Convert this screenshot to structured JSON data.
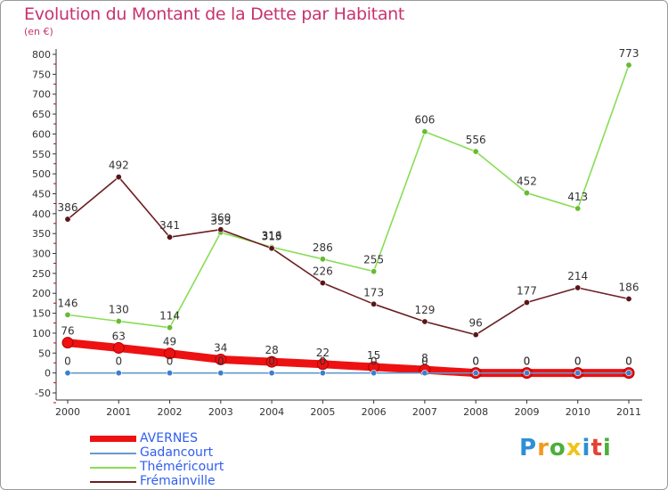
{
  "header": {
    "title": "Evolution du Montant de la Dette par Habitant",
    "subtitle": "(en €)"
  },
  "colors": {
    "title": "#c8326e",
    "axis": "#333333",
    "grid_tick": "#cc0000",
    "legend_text": "#2f5ef0"
  },
  "chart_data": {
    "type": "line",
    "x": [
      "2000",
      "2001",
      "2002",
      "2003",
      "2004",
      "2005",
      "2006",
      "2007",
      "2008",
      "2009",
      "2010",
      "2011"
    ],
    "ylim": [
      -50,
      800
    ],
    "yticks": [
      "-50",
      "0",
      "50",
      "100",
      "150",
      "200",
      "250",
      "300",
      "350",
      "400",
      "450",
      "500",
      "550",
      "600",
      "650",
      "700",
      "750",
      "800"
    ],
    "grid": false,
    "legend_position": "bottom-left",
    "series": [
      {
        "name": "AVERNES",
        "color": "#ee1111",
        "marker_color": "#ee1111",
        "values": [
          76,
          63,
          49,
          34,
          28,
          22,
          15,
          8,
          0,
          0,
          0,
          0
        ],
        "labels": [
          "76",
          "63",
          "49",
          "34",
          "28",
          "22",
          "15",
          "8",
          "0",
          "0",
          "0",
          "0"
        ],
        "style": "thick"
      },
      {
        "name": "Gadancourt",
        "color": "#6699cc",
        "marker_color": "#3a7fd0",
        "values": [
          0,
          0,
          0,
          0,
          0,
          0,
          0,
          0,
          0,
          0,
          0,
          0
        ],
        "labels": [
          "0",
          "0",
          "0",
          "0",
          "0",
          "0",
          "0",
          "0",
          "0",
          "0",
          "0",
          "0"
        ],
        "style": "thin"
      },
      {
        "name": "Théméricourt",
        "color": "#88dd55",
        "marker_color": "#66bb33",
        "values": [
          146,
          130,
          114,
          353,
          316,
          286,
          255,
          606,
          556,
          452,
          413,
          773
        ],
        "labels": [
          "146",
          "130",
          "114",
          "353",
          "316",
          "286",
          "255",
          "606",
          "556",
          "452",
          "413",
          "773"
        ],
        "style": "thin"
      },
      {
        "name": "Frémainville",
        "color": "#6b1f22",
        "marker_color": "#5a1518",
        "values": [
          386,
          492,
          341,
          360,
          313,
          226,
          173,
          129,
          96,
          177,
          214,
          186
        ],
        "labels": [
          "386",
          "492",
          "341",
          "360",
          "313",
          "226",
          "173",
          "129",
          "96",
          "177",
          "214",
          "186"
        ],
        "style": "thin"
      }
    ]
  },
  "legend": {
    "items": [
      {
        "name": "AVERNES",
        "color": "#ee1111"
      },
      {
        "name": "Gadancourt",
        "color": "#6699cc"
      },
      {
        "name": "Théméricourt",
        "color": "#88dd55"
      },
      {
        "name": "Frémainville",
        "color": "#6b1f22"
      }
    ]
  },
  "logo": {
    "letters": [
      "P",
      "r",
      "o",
      "x",
      "i",
      "t",
      "i"
    ],
    "colors": [
      "#2e8fd6",
      "#f39a1e",
      "#4caf3a",
      "#f0c419",
      "#2e8fd6",
      "#e34234",
      "#4caf3a"
    ]
  }
}
